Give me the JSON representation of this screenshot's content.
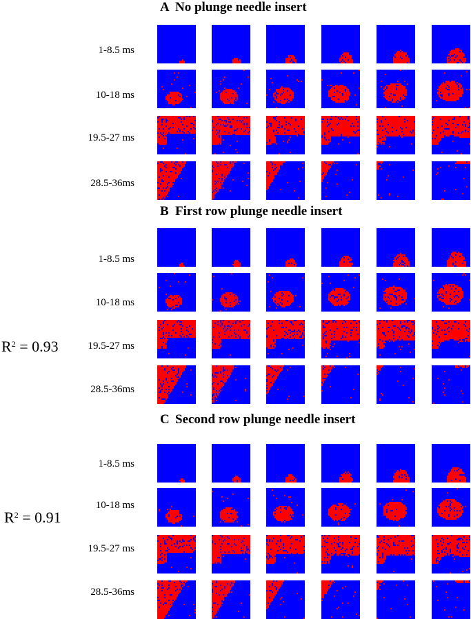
{
  "colors": {
    "background": "#0000ff",
    "activation": "#ff0000"
  },
  "panels": [
    {
      "id": "A",
      "letter": "A",
      "title": "No plunge needle insert",
      "r2": "",
      "rows": [
        {
          "label": "1-8.5 ms",
          "level": 0
        },
        {
          "label": "10-18 ms",
          "level": 1
        },
        {
          "label": "19.5-27 ms",
          "level": 2
        },
        {
          "label": "28.5-36ms",
          "level": 3
        }
      ]
    },
    {
      "id": "B",
      "letter": "B",
      "title": "First row plunge needle insert",
      "r2": "0.93",
      "rows": [
        {
          "label": "1-8.5 ms",
          "level": 0
        },
        {
          "label": "10-18 ms",
          "level": 1
        },
        {
          "label": "19.5-27 ms",
          "level": 2
        },
        {
          "label": "28.5-36ms",
          "level": 3
        }
      ]
    },
    {
      "id": "C",
      "letter": "C",
      "title": "Second row plunge needle insert",
      "r2": "0.91",
      "rows": [
        {
          "label": "1-8.5 ms",
          "level": 0
        },
        {
          "label": "10-18 ms",
          "level": 1
        },
        {
          "label": "19.5-27 ms",
          "level": 2
        },
        {
          "label": "28.5-36ms",
          "level": 3
        }
      ]
    }
  ],
  "r2_prefix": "R",
  "r2_exponent": "2",
  "r2_equals": " = "
}
